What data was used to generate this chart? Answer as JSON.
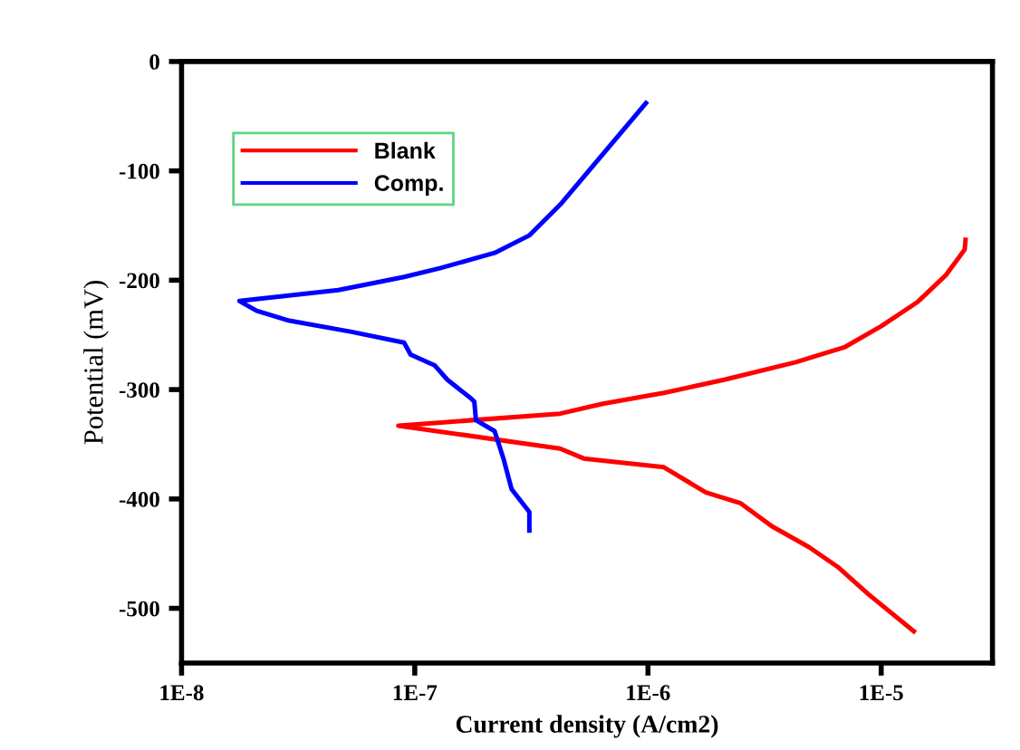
{
  "chart_data": {
    "type": "line",
    "xlabel": "Current density (A/cm2)",
    "ylabel": "Potential (mV)",
    "log": "x",
    "xlim": [
      1e-08,
      3e-05
    ],
    "ylim": [
      -550,
      0
    ],
    "xticks": [
      {
        "value": 1e-08,
        "label": "1E-8"
      },
      {
        "value": 1e-07,
        "label": "1E-7"
      },
      {
        "value": 1e-06,
        "label": "1E-6"
      },
      {
        "value": 1e-05,
        "label": "1E-5"
      }
    ],
    "yticks": [
      0,
      -100,
      -200,
      -300,
      -400,
      -500
    ],
    "grid": false,
    "legend": "top left",
    "line_style": "solid",
    "marker": "none",
    "series": [
      {
        "name": "Blank",
        "color": "#ff0000",
        "x": [
          2.3e-05,
          2.28e-05,
          1.9e-05,
          1.43e-05,
          1e-05,
          7e-06,
          4.3e-06,
          2.12e-06,
          1.17e-06,
          6.4e-07,
          4.2e-07,
          8.5e-08,
          4.2e-07,
          5.3e-07,
          1.17e-06,
          1.77e-06,
          2.5e-06,
          3.4e-06,
          4.9e-06,
          6.5e-06,
          8.8e-06,
          1.38e-05
        ],
        "values": [
          -163,
          -172,
          -195,
          -220,
          -242,
          -261,
          -275,
          -291,
          -303,
          -313,
          -322,
          -333,
          -354,
          -363,
          -371,
          -394,
          -404,
          -425,
          -444,
          -462,
          -487,
          -521
        ]
      },
      {
        "name": "Comp.",
        "color": "#0000ff",
        "x": [
          9.8e-07,
          4.2e-07,
          3.1e-07,
          2.2e-07,
          1.28e-07,
          9e-08,
          4.7e-08,
          1.77e-08,
          2.1e-08,
          2.9e-08,
          5.3e-08,
          9e-08,
          9.6e-08,
          1.22e-07,
          1.38e-07,
          1.74e-07,
          1.8e-07,
          1.83e-07,
          2.2e-07,
          2.4e-07,
          2.6e-07,
          3.1e-07,
          3.1e-07
        ],
        "values": [
          -38,
          -131,
          -159,
          -175,
          -189,
          -197,
          -209,
          -219,
          -228,
          -237,
          -247,
          -257,
          -268,
          -278,
          -291,
          -308,
          -311,
          -328,
          -338,
          -363,
          -391,
          -412,
          -429
        ]
      }
    ]
  }
}
